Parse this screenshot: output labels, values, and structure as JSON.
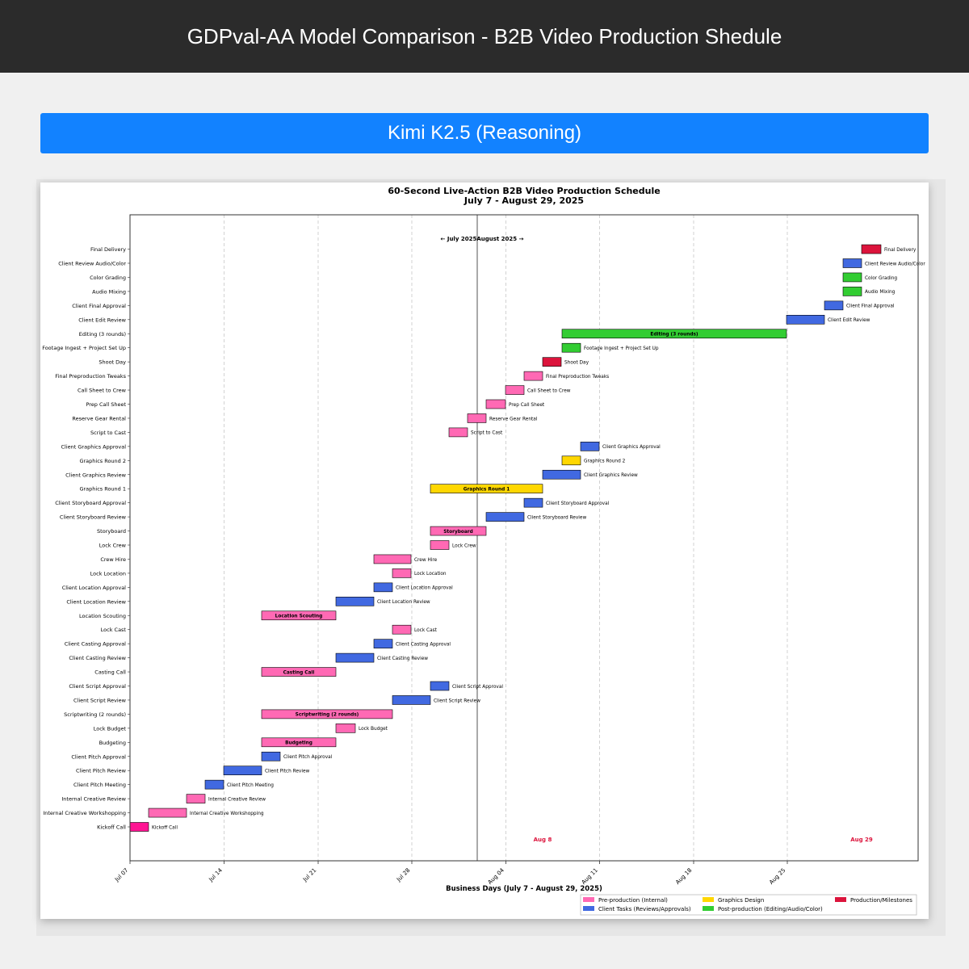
{
  "header": {
    "title": "GDPval-AA Model Comparison - B2B Video Production Shedule"
  },
  "model": {
    "name": "Kimi K2.5 (Reasoning)"
  },
  "chart_data": {
    "type": "gantt",
    "title": "60-Second Live-Action B2B Video Production Schedule",
    "subtitle": "July 7 - August 29, 2025",
    "xlabel": "Business Days (July 7 - August 29, 2025)",
    "xlim": [
      "2025-07-07",
      "2025-08-29"
    ],
    "x_ticks": [
      "Jul 07",
      "Jul 14",
      "Jul 21",
      "Jul 28",
      "Aug 04",
      "Aug 11",
      "Aug 18",
      "Aug 25"
    ],
    "month_divider": {
      "date": "2025-08-01",
      "label": "← July 2025August 2025 →"
    },
    "markers": [
      {
        "label": "Aug 8",
        "date": "2025-08-08"
      },
      {
        "label": "Aug 29",
        "date": "2025-08-29"
      }
    ],
    "grid": "vertical dashed",
    "legend_position": "bottom-right",
    "categories": [
      {
        "key": "pre",
        "name": "Pre-production (Internal)",
        "color": "#ff69b4"
      },
      {
        "key": "client",
        "name": "Client Tasks (Reviews/Approvals)",
        "color": "#4169e1"
      },
      {
        "key": "graphics",
        "name": "Graphics Design",
        "color": "#ffd700"
      },
      {
        "key": "post",
        "name": "Post-production (Editing/Audio/Color)",
        "color": "#32cd32"
      },
      {
        "key": "milestone",
        "name": "Production/Milestones",
        "color": "#dc143c"
      }
    ],
    "tasks": [
      {
        "name": "Kickoff Call",
        "start": "2025-07-07",
        "end": "2025-07-08",
        "category": "kickoff"
      },
      {
        "name": "Internal Creative Workshopping",
        "start": "2025-07-08",
        "end": "2025-07-10",
        "category": "pre"
      },
      {
        "name": "Internal Creative Review",
        "start": "2025-07-10",
        "end": "2025-07-11",
        "category": "pre"
      },
      {
        "name": "Client Pitch Meeting",
        "start": "2025-07-11",
        "end": "2025-07-12",
        "category": "client"
      },
      {
        "name": "Client Pitch Review",
        "start": "2025-07-12",
        "end": "2025-07-14",
        "category": "client"
      },
      {
        "name": "Client Pitch Approval",
        "start": "2025-07-14",
        "end": "2025-07-15",
        "category": "client"
      },
      {
        "name": "Budgeting",
        "start": "2025-07-14",
        "end": "2025-07-18",
        "category": "pre",
        "label_inside": true
      },
      {
        "name": "Lock Budget",
        "start": "2025-07-18",
        "end": "2025-07-19",
        "category": "pre"
      },
      {
        "name": "Scriptwriting (2 rounds)",
        "start": "2025-07-14",
        "end": "2025-07-21",
        "category": "pre",
        "label_inside": true
      },
      {
        "name": "Client Script Review",
        "start": "2025-07-21",
        "end": "2025-07-23",
        "category": "client"
      },
      {
        "name": "Client Script Approval",
        "start": "2025-07-23",
        "end": "2025-07-24",
        "category": "client"
      },
      {
        "name": "Casting Call",
        "start": "2025-07-14",
        "end": "2025-07-18",
        "category": "pre",
        "label_inside": true
      },
      {
        "name": "Client Casting Review",
        "start": "2025-07-18",
        "end": "2025-07-20",
        "category": "client"
      },
      {
        "name": "Client Casting Approval",
        "start": "2025-07-20",
        "end": "2025-07-21",
        "category": "client"
      },
      {
        "name": "Lock Cast",
        "start": "2025-07-21",
        "end": "2025-07-22",
        "category": "pre"
      },
      {
        "name": "Location Scouting",
        "start": "2025-07-14",
        "end": "2025-07-18",
        "category": "pre",
        "label_inside": true
      },
      {
        "name": "Client Location Review",
        "start": "2025-07-18",
        "end": "2025-07-20",
        "category": "client"
      },
      {
        "name": "Client Location Approval",
        "start": "2025-07-20",
        "end": "2025-07-21",
        "category": "client"
      },
      {
        "name": "Lock Location",
        "start": "2025-07-21",
        "end": "2025-07-22",
        "category": "pre"
      },
      {
        "name": "Crew Hire",
        "start": "2025-07-20",
        "end": "2025-07-22",
        "category": "pre"
      },
      {
        "name": "Lock Crew",
        "start": "2025-07-23",
        "end": "2025-07-24",
        "category": "pre"
      },
      {
        "name": "Storyboard",
        "start": "2025-07-23",
        "end": "2025-07-26",
        "category": "pre",
        "label_inside": true
      },
      {
        "name": "Client Storyboard Review",
        "start": "2025-07-26",
        "end": "2025-07-28",
        "category": "client"
      },
      {
        "name": "Client Storyboard Approval",
        "start": "2025-07-28",
        "end": "2025-07-29",
        "category": "client"
      },
      {
        "name": "Graphics Round 1",
        "start": "2025-07-23",
        "end": "2025-07-29",
        "category": "graphics",
        "label_inside": true
      },
      {
        "name": "Client Graphics Review",
        "start": "2025-07-29",
        "end": "2025-07-31",
        "category": "client"
      },
      {
        "name": "Graphics Round 2",
        "start": "2025-07-30",
        "end": "2025-07-31",
        "category": "graphics"
      },
      {
        "name": "Client Graphics Approval",
        "start": "2025-07-31",
        "end": "2025-08-01",
        "category": "client"
      },
      {
        "name": "Script to Cast",
        "start": "2025-07-24",
        "end": "2025-07-25",
        "category": "pre"
      },
      {
        "name": "Reserve Gear Rental",
        "start": "2025-07-25",
        "end": "2025-07-26",
        "category": "pre"
      },
      {
        "name": "Prep Call Sheet",
        "start": "2025-07-26",
        "end": "2025-07-27",
        "category": "pre"
      },
      {
        "name": "Call Sheet to Crew",
        "start": "2025-07-27",
        "end": "2025-07-28",
        "category": "pre"
      },
      {
        "name": "Final Preproduction Tweaks",
        "start": "2025-07-28",
        "end": "2025-07-29",
        "category": "pre"
      },
      {
        "name": "Shoot Day",
        "start": "2025-07-29",
        "end": "2025-07-30",
        "category": "milestone"
      },
      {
        "name": "Footage Ingest + Project Set Up",
        "start": "2025-07-30",
        "end": "2025-07-31",
        "category": "post"
      },
      {
        "name": "Editing (3 rounds)",
        "start": "2025-07-30",
        "end": "2025-08-11",
        "category": "post",
        "label_inside": true
      },
      {
        "name": "Client Edit Review",
        "start": "2025-08-11",
        "end": "2025-08-13",
        "category": "client"
      },
      {
        "name": "Client Final Approval",
        "start": "2025-08-13",
        "end": "2025-08-14",
        "category": "client"
      },
      {
        "name": "Audio Mixing",
        "start": "2025-08-14",
        "end": "2025-08-15",
        "category": "post"
      },
      {
        "name": "Color Grading",
        "start": "2025-08-14",
        "end": "2025-08-15",
        "category": "post"
      },
      {
        "name": "Client Review Audio/Color",
        "start": "2025-08-14",
        "end": "2025-08-15",
        "category": "client"
      },
      {
        "name": "Final Delivery",
        "start": "2025-08-15",
        "end": "2025-08-16",
        "category": "milestone"
      }
    ]
  }
}
